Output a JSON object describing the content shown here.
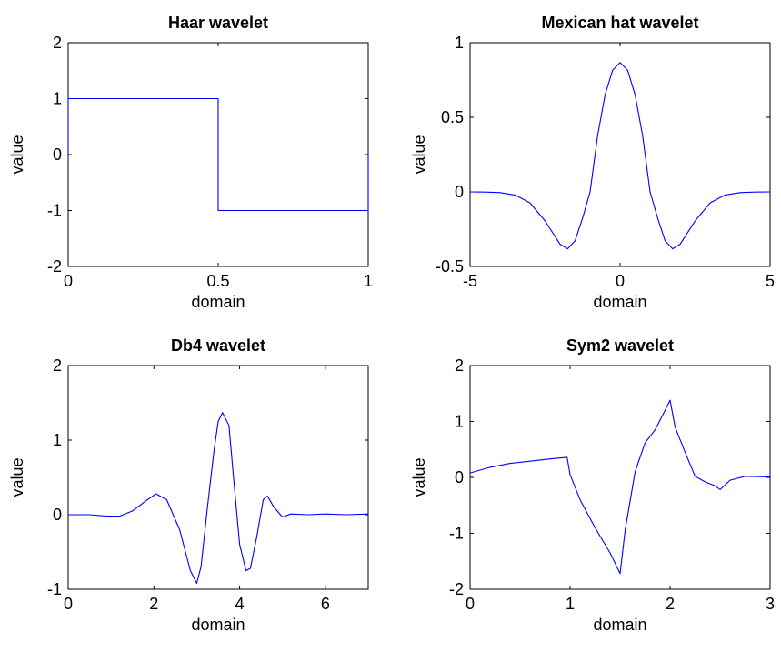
{
  "chart_data": [
    {
      "type": "line",
      "title": "Haar wavelet",
      "xlabel": "domain",
      "ylabel": "value",
      "xlim": [
        0,
        1
      ],
      "ylim": [
        -2,
        2
      ],
      "xticks": [
        0,
        0.5,
        1
      ],
      "xtick_labels": [
        "0",
        "0.5",
        "1"
      ],
      "yticks": [
        -2,
        -1,
        0,
        1,
        2
      ],
      "ytick_labels": [
        "-2",
        "-1",
        "0",
        "1",
        "2"
      ],
      "grid": false,
      "color": "#0000ff",
      "series": [
        {
          "x": [
            0,
            0,
            0.5,
            0.5,
            1,
            1
          ],
          "y": [
            0,
            1,
            1,
            -1,
            -1,
            0
          ]
        }
      ]
    },
    {
      "type": "line",
      "title": "Mexican hat wavelet",
      "xlabel": "domain",
      "ylabel": "value",
      "xlim": [
        -5,
        5
      ],
      "ylim": [
        -0.5,
        1
      ],
      "xticks": [
        -5,
        0,
        5
      ],
      "xtick_labels": [
        "-5",
        "0",
        "5"
      ],
      "yticks": [
        -0.5,
        0,
        0.5,
        1
      ],
      "ytick_labels": [
        "-0.5",
        "0",
        "0.5",
        "1"
      ],
      "grid": false,
      "color": "#0000ff",
      "series": [
        {
          "x": [
            -5,
            -4.5,
            -4,
            -3.5,
            -3,
            -2.5,
            -2,
            -1.75,
            -1.5,
            -1.25,
            -1,
            -0.75,
            -0.5,
            -0.25,
            0,
            0.25,
            0.5,
            0.75,
            1,
            1.25,
            1.5,
            1.75,
            2,
            2.5,
            3,
            3.5,
            4,
            4.5,
            5
          ],
          "y": [
            0,
            -0.001,
            -0.005,
            -0.021,
            -0.074,
            -0.195,
            -0.351,
            -0.382,
            -0.328,
            -0.175,
            0,
            0.377,
            0.651,
            0.816,
            0.867,
            0.816,
            0.651,
            0.377,
            0,
            -0.175,
            -0.328,
            -0.382,
            -0.351,
            -0.195,
            -0.074,
            -0.021,
            -0.005,
            -0.001,
            0
          ]
        }
      ]
    },
    {
      "type": "line",
      "title": "Db4 wavelet",
      "xlabel": "domain",
      "ylabel": "value",
      "xlim": [
        0,
        7
      ],
      "ylim": [
        -1,
        2
      ],
      "xticks": [
        0,
        2,
        4,
        6
      ],
      "xtick_labels": [
        "0",
        "2",
        "4",
        "6"
      ],
      "yticks": [
        -1,
        0,
        1,
        2
      ],
      "ytick_labels": [
        "-1",
        "0",
        "1",
        "2"
      ],
      "grid": false,
      "color": "#0000ff",
      "series": [
        {
          "x": [
            0,
            0.5,
            0.9,
            1.2,
            1.5,
            1.8,
            2.05,
            2.3,
            2.6,
            2.85,
            3.0,
            3.1,
            3.25,
            3.4,
            3.5,
            3.6,
            3.75,
            3.85,
            4.0,
            4.15,
            4.25,
            4.4,
            4.55,
            4.65,
            4.8,
            5.0,
            5.2,
            5.6,
            6.0,
            6.5,
            7.0
          ],
          "y": [
            0,
            0,
            -0.02,
            -0.02,
            0.05,
            0.18,
            0.28,
            0.2,
            -0.2,
            -0.75,
            -0.92,
            -0.7,
            0.1,
            0.85,
            1.25,
            1.37,
            1.2,
            0.55,
            -0.4,
            -0.75,
            -0.72,
            -0.3,
            0.2,
            0.25,
            0.1,
            -0.03,
            0.01,
            0,
            0.01,
            0,
            0.01
          ]
        }
      ]
    },
    {
      "type": "line",
      "title": "Sym2 wavelet",
      "xlabel": "domain",
      "ylabel": "value",
      "xlim": [
        0,
        3
      ],
      "ylim": [
        -2,
        2
      ],
      "xticks": [
        0,
        1,
        2,
        3
      ],
      "xtick_labels": [
        "0",
        "1",
        "2",
        "3"
      ],
      "yticks": [
        -2,
        -1,
        0,
        1,
        2
      ],
      "ytick_labels": [
        "-2",
        "-1",
        "0",
        "1",
        "2"
      ],
      "grid": false,
      "color": "#0000ff",
      "series": [
        {
          "x": [
            0,
            0.2,
            0.4,
            0.6,
            0.8,
            0.97,
            1.0,
            1.1,
            1.25,
            1.4,
            1.5,
            1.55,
            1.65,
            1.75,
            1.85,
            1.95,
            2.0,
            2.05,
            2.15,
            2.25,
            2.35,
            2.45,
            2.5,
            2.6,
            2.75,
            3.0
          ],
          "y": [
            0.08,
            0.18,
            0.25,
            0.29,
            0.33,
            0.36,
            0.05,
            -0.4,
            -0.9,
            -1.35,
            -1.72,
            -0.95,
            0.1,
            0.62,
            0.85,
            1.2,
            1.38,
            0.9,
            0.45,
            0.02,
            -0.08,
            -0.15,
            -0.22,
            -0.05,
            0.02,
            0.01
          ]
        }
      ]
    }
  ]
}
